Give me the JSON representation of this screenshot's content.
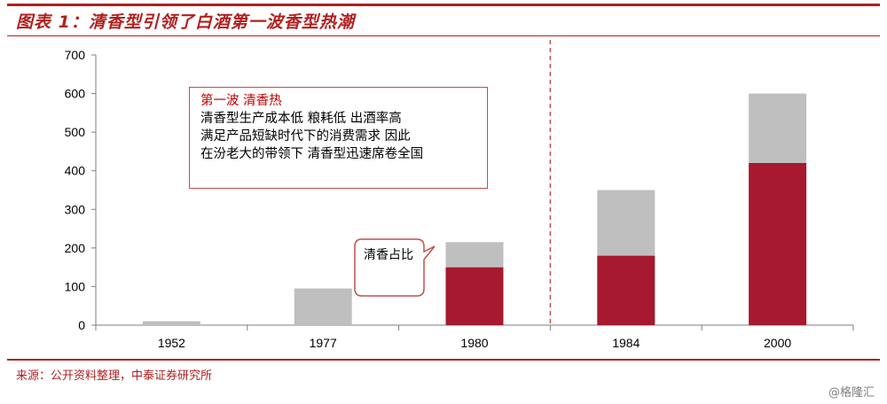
{
  "header": {
    "title": "图表 1：清香型引领了白酒第一波香型热潮"
  },
  "footer": {
    "source": "来源：公开资料整理，中泰证券研究所",
    "watermark": "@格隆汇"
  },
  "annotation": {
    "heading": "第一波   清香热",
    "lines": [
      "清香型生产成本低    粮耗低    出酒率高",
      "满足产品短缺时代下的消费需求    因此",
      "在汾老大的带领下    清香型迅速席卷全国"
    ]
  },
  "callout": {
    "text": "清香占比"
  },
  "colors": {
    "accent": "#b0201f",
    "qingxiang": "#a6192e",
    "total": "#bfbfbf",
    "axis": "#7f7f7f",
    "divider": "#c0504d"
  },
  "chart_data": {
    "type": "bar",
    "stacked": true,
    "categories": [
      "1952",
      "1977",
      "1980",
      "1984",
      "2000"
    ],
    "series": [
      {
        "values": [
          0,
          0,
          150,
          180,
          420
        ]
      },
      {
        "values": [
          10,
          95,
          65,
          170,
          180
        ]
      }
    ],
    "totals": [
      10,
      95,
      215,
      350,
      600
    ],
    "ylim": [
      0,
      700
    ],
    "yticks": [
      "0",
      "100",
      "200",
      "300",
      "400",
      "500",
      "600",
      "700"
    ],
    "grid": false,
    "divider_after": "1980",
    "xlabel": "",
    "ylabel": ""
  }
}
